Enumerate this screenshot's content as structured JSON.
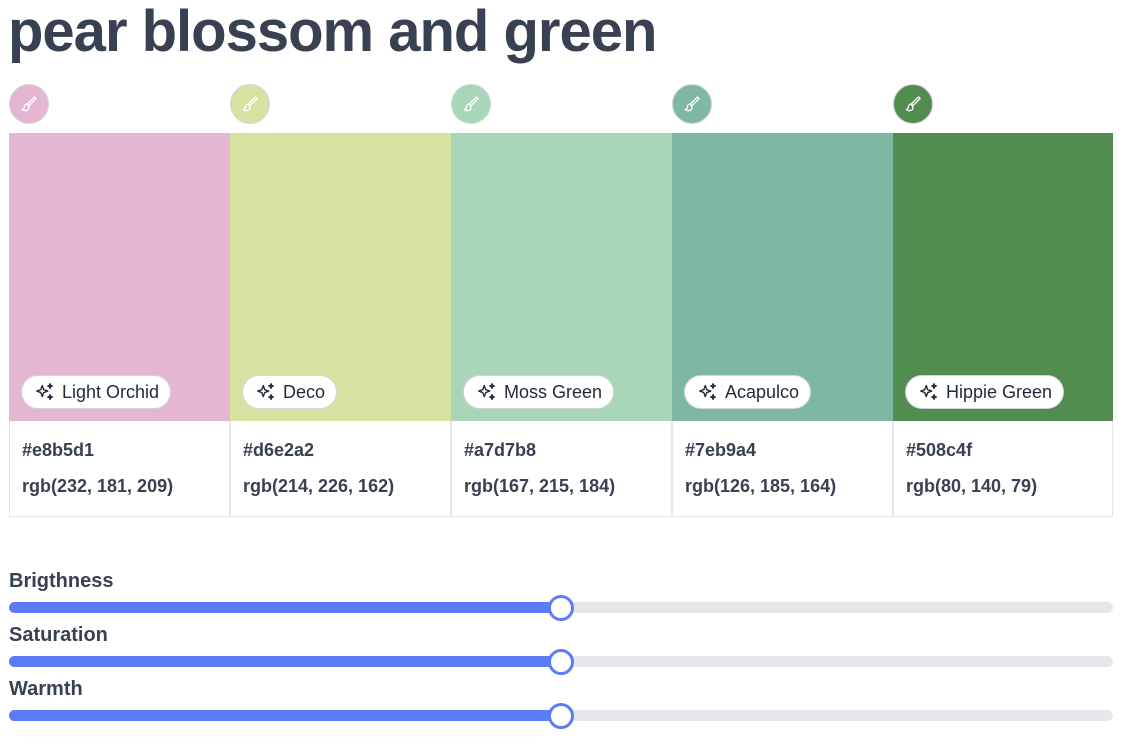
{
  "title": "pear blossom and green",
  "icons": {
    "brush": "paint-brush-icon",
    "sparkle": "sparkles-icon"
  },
  "colors": [
    {
      "name": "Light Orchid",
      "hex": "#e8b5d1",
      "rgb": "rgb(232, 181, 209)",
      "swatch": "#e5b6d1",
      "icon_stroke": "#ffffff"
    },
    {
      "name": "Deco",
      "hex": "#d6e2a2",
      "rgb": "rgb(214, 226, 162)",
      "swatch": "#d6e2a2",
      "icon_stroke": "#ffffff"
    },
    {
      "name": "Moss Green",
      "hex": "#a7d7b8",
      "rgb": "rgb(167, 215, 184)",
      "swatch": "#a9d6b9",
      "icon_stroke": "#ffffff"
    },
    {
      "name": "Acapulco",
      "hex": "#7eb9a4",
      "rgb": "rgb(126, 185, 164)",
      "swatch": "#7eb8a2",
      "icon_stroke": "#ffffff"
    },
    {
      "name": "Hippie Green",
      "hex": "#508c4f",
      "rgb": "rgb(80, 140, 79)",
      "swatch": "#518d4f",
      "icon_stroke": "#ffffff"
    }
  ],
  "sliders": [
    {
      "label": "Brigthness",
      "value": 0.5
    },
    {
      "label": "Saturation",
      "value": 0.5
    },
    {
      "label": "Warmth",
      "value": 0.5
    }
  ],
  "accent": "#5b7cf6"
}
